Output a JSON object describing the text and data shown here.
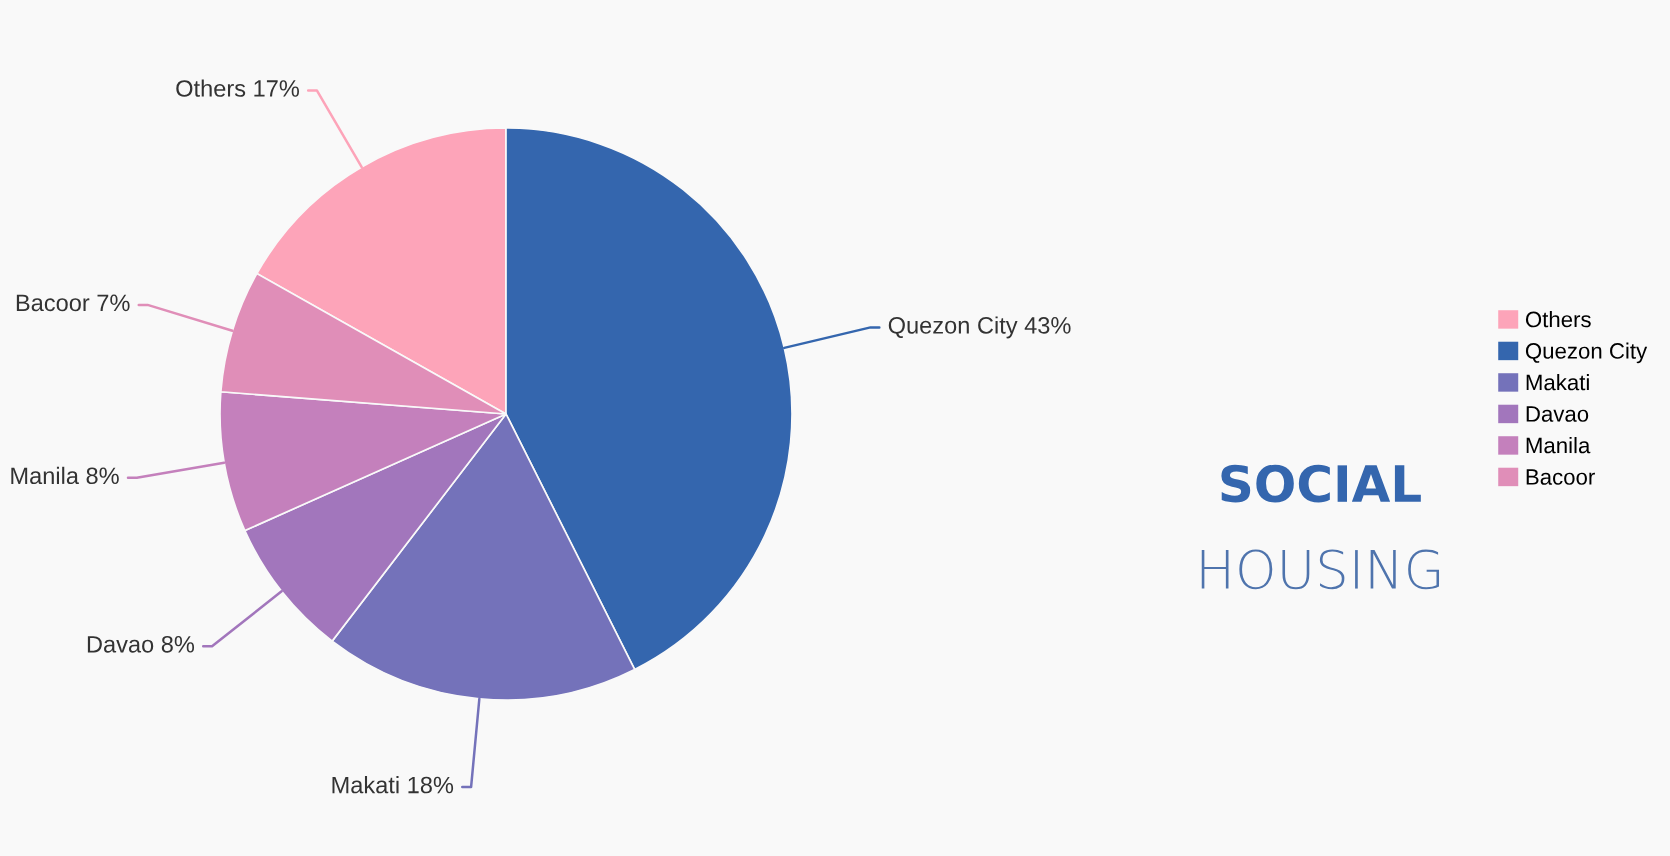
{
  "chart_data": {
    "type": "pie",
    "title": "SOCIAL",
    "subtitle": "HOUSING",
    "categories": [
      "Others",
      "Quezon City",
      "Makati",
      "Davao",
      "Manila",
      "Bacoor"
    ],
    "values": [
      17,
      43,
      18,
      8,
      8,
      7
    ],
    "colors": [
      "#fda4b9",
      "#3466ae",
      "#7472ba",
      "#a276bc",
      "#c480bc",
      "#e08eb8"
    ],
    "value_labels": [
      "17%",
      "43%",
      "18%",
      "8%",
      "8%",
      "7%"
    ],
    "legend": "right"
  }
}
